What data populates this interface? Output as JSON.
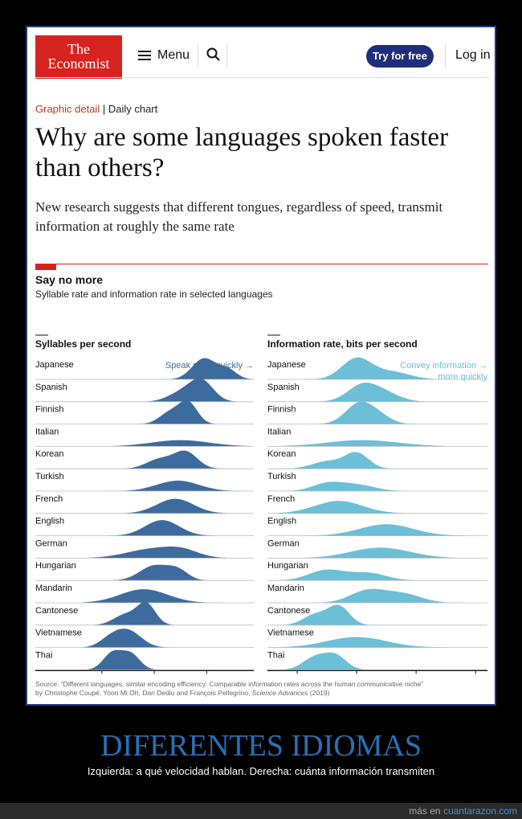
{
  "header": {
    "logo_line1": "The",
    "logo_line2": "Economist",
    "menu_label": "Menu",
    "try_label": "Try for free",
    "login_label": "Log in"
  },
  "article": {
    "section": "Graphic detail",
    "separator": " | ",
    "type": "Daily chart",
    "title": "Why are some languages spoken faster than others?",
    "subtitle": "New research suggests that different tongues, regardless of speed, transmit information at roughly the same rate"
  },
  "chart_data": {
    "type": "ridgeline",
    "title": "Say no more",
    "subtitle": "Syllable rate and information rate in selected languages",
    "languages": [
      "Japanese",
      "Spanish",
      "Finnish",
      "Italian",
      "Korean",
      "Turkish",
      "French",
      "English",
      "German",
      "Hungarian",
      "Mandarin",
      "Cantonese",
      "Vietnamese",
      "Thai"
    ],
    "panels": [
      {
        "label": "Syllables per second",
        "annotation": "Speak more quickly",
        "annotation_lines": [
          "Speak more quickly →"
        ],
        "xlim": [
          3.3,
          9.8
        ],
        "ticks": [
          4,
          6,
          8
        ],
        "color": "#3d6b9e",
        "peaks": {
          "Japanese": [
            [
              7.9,
              0.45,
              1.0
            ],
            [
              8.8,
              0.35,
              0.45
            ]
          ],
          "Spanish": [
            [
              7.8,
              0.45,
              1.0
            ],
            [
              7.0,
              0.5,
              0.4
            ]
          ],
          "Finnish": [
            [
              7.3,
              0.35,
              1.0
            ],
            [
              6.6,
              0.4,
              0.55
            ]
          ],
          "Italian": [
            [
              7.0,
              1.1,
              0.3
            ]
          ],
          "Korean": [
            [
              7.2,
              0.45,
              0.8
            ],
            [
              6.2,
              0.5,
              0.45
            ]
          ],
          "Turkish": [
            [
              6.9,
              0.8,
              0.5
            ]
          ],
          "French": [
            [
              6.8,
              0.7,
              0.7
            ]
          ],
          "English": [
            [
              6.3,
              0.65,
              0.75
            ]
          ],
          "German": [
            [
              6.0,
              1.0,
              0.45
            ],
            [
              7.1,
              0.6,
              0.25
            ]
          ],
          "Hungarian": [
            [
              6.0,
              0.55,
              0.7
            ],
            [
              6.9,
              0.4,
              0.45
            ]
          ],
          "Mandarin": [
            [
              5.6,
              0.9,
              0.65
            ]
          ],
          "Cantonese": [
            [
              5.7,
              0.35,
              1.0
            ],
            [
              4.9,
              0.45,
              0.5
            ]
          ],
          "Vietnamese": [
            [
              5.0,
              0.5,
              0.8
            ],
            [
              4.3,
              0.4,
              0.35
            ]
          ],
          "Thai": [
            [
              4.4,
              0.35,
              0.8
            ],
            [
              5.1,
              0.35,
              0.75
            ]
          ]
        }
      },
      {
        "label": "Information rate, bits per second",
        "annotation": "Convey information more quickly",
        "annotation_lines": [
          "Convey information →",
          "more quickly"
        ],
        "xlim": [
          25,
          62
        ],
        "ticks": [
          30,
          40,
          50,
          60
        ],
        "color": "#6cbfd6",
        "peaks": {
          "Japanese": [
            [
              40,
              2.5,
              1.0
            ],
            [
              46,
              3.0,
              0.35
            ]
          ],
          "Spanish": [
            [
              41,
              2.5,
              0.8
            ],
            [
              45,
              2.5,
              0.35
            ]
          ],
          "Finnish": [
            [
              40.5,
              2.3,
              1.0
            ],
            [
              44,
              2.0,
              0.3
            ]
          ],
          "Italian": [
            [
              41,
              6.0,
              0.3
            ]
          ],
          "Korean": [
            [
              40,
              2.0,
              0.75
            ],
            [
              35,
              2.5,
              0.35
            ]
          ],
          "Turkish": [
            [
              35,
              2.5,
              0.35
            ],
            [
              40,
              3.0,
              0.3
            ]
          ],
          "French": [
            [
              37,
              4.0,
              0.6
            ]
          ],
          "English": [
            [
              45,
              4.5,
              0.55
            ]
          ],
          "German": [
            [
              44,
              5.0,
              0.5
            ]
          ],
          "Hungarian": [
            [
              35,
              3.0,
              0.5
            ],
            [
              42,
              3.0,
              0.35
            ]
          ],
          "Mandarin": [
            [
              42,
              3.0,
              0.6
            ],
            [
              48,
              3.0,
              0.4
            ]
          ],
          "Cantonese": [
            [
              37,
              1.8,
              0.9
            ],
            [
              33,
              2.0,
              0.5
            ]
          ],
          "Vietnamese": [
            [
              40,
              5.0,
              0.5
            ]
          ],
          "Thai": [
            [
              33,
              2.0,
              0.6
            ],
            [
              36.5,
              1.8,
              0.65
            ]
          ]
        }
      }
    ]
  },
  "source": {
    "line1": "Source: “Different languages, similar encoding efficiency: Comparable information rates across the human communicative niche”",
    "line2_authors": "by Christophe Coupé, Yoon Mi Oh, Dan Dediu and François Pellegrino, ",
    "line2_journal": "Science Advances",
    "line2_year": " (2019)"
  },
  "overlay": {
    "headline": "DIFERENTES IDIOMAS",
    "caption": "Izquierda: a qué velocidad hablan. Derecha: cuánta información transmiten",
    "footer_prefix": "más en ",
    "footer_link": "cuantarazon.com"
  }
}
